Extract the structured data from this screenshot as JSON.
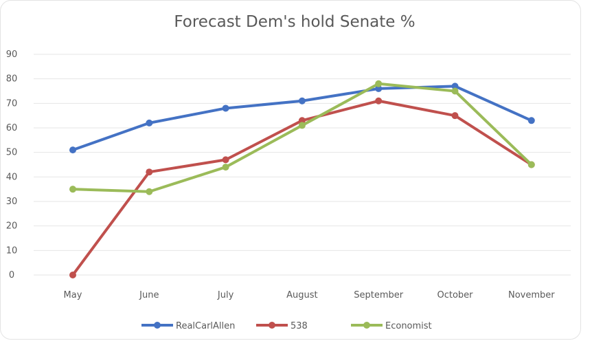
{
  "chart_data": {
    "type": "line",
    "title": "Forecast Dem's hold Senate %",
    "xlabel": "",
    "ylabel": "",
    "categories": [
      "May",
      "June",
      "July",
      "August",
      "September",
      "October",
      "November"
    ],
    "ylim": [
      0,
      90
    ],
    "yticks": [
      0,
      10,
      20,
      30,
      40,
      50,
      60,
      70,
      80,
      90
    ],
    "grid": true,
    "legend_position": "bottom",
    "series": [
      {
        "name": "RealCarlAllen",
        "color": "#4472c4",
        "values": [
          51,
          62,
          68,
          71,
          76,
          77,
          63
        ]
      },
      {
        "name": "538",
        "color": "#c0504d",
        "values": [
          0,
          42,
          47,
          63,
          71,
          65,
          45
        ]
      },
      {
        "name": "Economist",
        "color": "#9bbb59",
        "values": [
          35,
          34,
          44,
          61,
          78,
          75,
          45
        ]
      }
    ]
  }
}
